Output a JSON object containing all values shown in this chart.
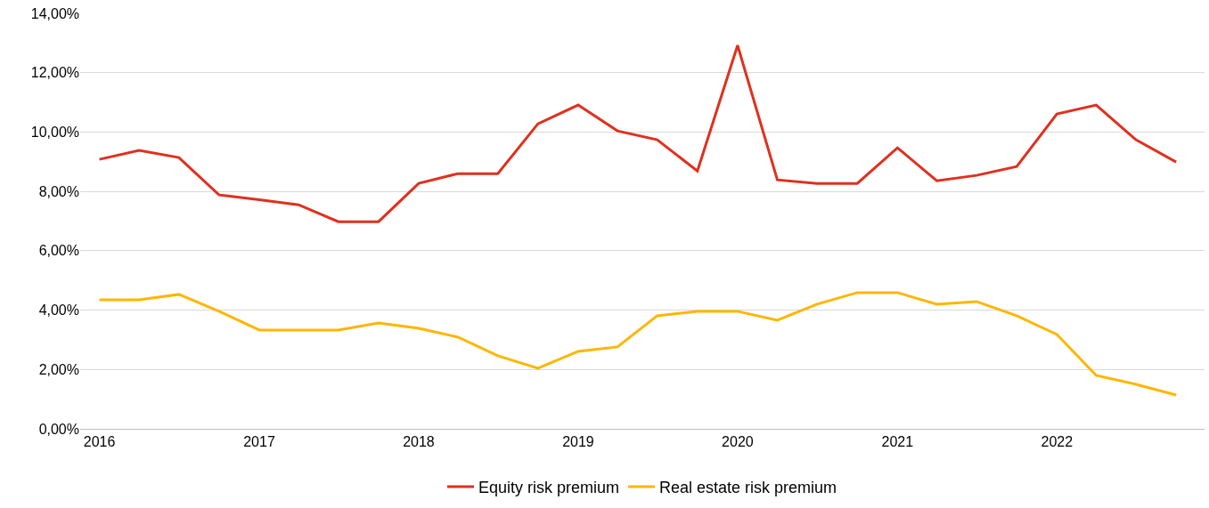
{
  "chart_data": {
    "type": "line",
    "x": [
      "2016-01",
      "2016-04",
      "2016-07",
      "2016-10",
      "2017-01",
      "2017-04",
      "2017-07",
      "2017-10",
      "2018-01",
      "2018-04",
      "2018-07",
      "2018-10",
      "2019-01",
      "2019-04",
      "2019-07",
      "2019-10",
      "2020-01",
      "2020-04",
      "2020-07",
      "2020-10",
      "2021-01",
      "2021-04",
      "2021-07",
      "2021-10",
      "2022-01",
      "2022-04",
      "2022-07",
      "2022-10"
    ],
    "series": [
      {
        "name": "Equity risk premium",
        "color": "#e0301e",
        "values": [
          9.08,
          9.38,
          9.14,
          7.88,
          7.72,
          7.55,
          6.98,
          6.98,
          8.27,
          8.6,
          8.6,
          10.28,
          10.91,
          10.04,
          9.74,
          8.69,
          12.92,
          8.39,
          8.27,
          8.27,
          9.47,
          8.36,
          8.54,
          8.84,
          10.61,
          10.91,
          9.74,
          8.99
        ]
      },
      {
        "name": "Real estate risk premium",
        "color": "#ffb600",
        "values": [
          4.35,
          4.35,
          4.53,
          3.96,
          3.33,
          3.33,
          3.33,
          3.57,
          3.39,
          3.09,
          2.46,
          2.04,
          2.61,
          2.76,
          3.81,
          3.96,
          3.96,
          3.66,
          4.2,
          4.59,
          4.59,
          4.2,
          4.29,
          3.81,
          3.18,
          1.8,
          1.5,
          1.14
        ]
      }
    ],
    "xlim": [
      "2015-11-18",
      "2022-12-05"
    ],
    "xticks": [
      {
        "value": "2016-01",
        "label": "2016"
      },
      {
        "value": "2017-01",
        "label": "2017"
      },
      {
        "value": "2018-01",
        "label": "2018"
      },
      {
        "value": "2019-01",
        "label": "2019"
      },
      {
        "value": "2020-01",
        "label": "2020"
      },
      {
        "value": "2021-01",
        "label": "2021"
      },
      {
        "value": "2022-01",
        "label": "2022"
      }
    ],
    "ylim": [
      0,
      14
    ],
    "yticks": [
      {
        "value": 0,
        "label": "0,00%"
      },
      {
        "value": 2,
        "label": "2,00%"
      },
      {
        "value": 4,
        "label": "4,00%"
      },
      {
        "value": 6,
        "label": "6,00%"
      },
      {
        "value": 8,
        "label": "8,00%"
      },
      {
        "value": 10,
        "label": "10,00%"
      },
      {
        "value": 12,
        "label": "12,00%"
      },
      {
        "value": 14,
        "label": "14,00%"
      }
    ],
    "grid": "y",
    "legend": "bottom",
    "marker": "none",
    "line_style": "solid"
  }
}
